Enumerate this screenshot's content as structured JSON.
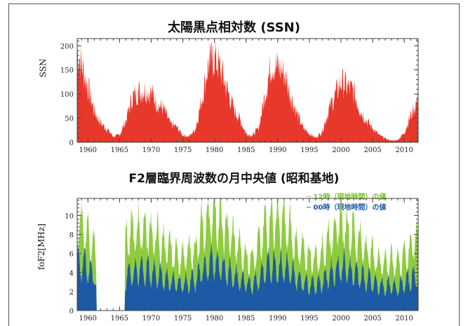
{
  "colors": {
    "ssn": "#e8372b",
    "noon": "#8ecb3f",
    "midnight": "#1d5aa6",
    "axis": "#444444"
  },
  "chart_data": [
    {
      "type": "area",
      "title": "太陽黒点相対数 (SSN)",
      "xlabel": "",
      "ylabel": "SSN",
      "xlim": [
        1958.3,
        2012.2
      ],
      "ylim": [
        0,
        215
      ],
      "xticks": [
        1960,
        1965,
        1970,
        1975,
        1980,
        1985,
        1990,
        1995,
        2000,
        2005,
        2010
      ],
      "xtick_labels": [
        "1960",
        "1965",
        "1970",
        "1975",
        "1980",
        "1985",
        "1990",
        "1995",
        "2000",
        "2005",
        "2010"
      ],
      "yticks": [
        0,
        50,
        100,
        150,
        200
      ],
      "ytick_labels": [
        "0",
        "50",
        "100",
        "150",
        "200"
      ],
      "series": [
        {
          "x": [
            1958.5,
            1959,
            1960,
            1961,
            1962,
            1963,
            1964,
            1965,
            1966,
            1967,
            1968,
            1969,
            1970,
            1971,
            1972,
            1973,
            1974,
            1975,
            1976,
            1977,
            1978,
            1979,
            1980,
            1981,
            1982,
            1983,
            1984,
            1985,
            1986,
            1987,
            1988,
            1989,
            1990,
            1991,
            1992,
            1993,
            1994,
            1995,
            1996,
            1997,
            1998,
            1999,
            2000,
            2001,
            2002,
            2003,
            2004,
            2005,
            2006,
            2007,
            2008,
            2009,
            2010,
            2011,
            2012
          ],
          "values": [
            185,
            160,
            115,
            65,
            40,
            28,
            12,
            15,
            45,
            93,
            105,
            108,
            103,
            80,
            68,
            38,
            32,
            15,
            12,
            28,
            90,
            160,
            175,
            150,
            110,
            70,
            48,
            18,
            14,
            30,
            100,
            165,
            155,
            145,
            100,
            60,
            30,
            18,
            9,
            22,
            65,
            95,
            125,
            115,
            105,
            68,
            45,
            30,
            15,
            8,
            3,
            5,
            20,
            55,
            85
          ]
        }
      ]
    },
    {
      "type": "area",
      "title": "F2層臨界周波数の月中央値 (昭和基地)",
      "xlabel": "",
      "ylabel": "foF2[MHz]",
      "xlim": [
        1958.3,
        2012.2
      ],
      "ylim": [
        0,
        11.8
      ],
      "xticks": [
        1960,
        1965,
        1970,
        1975,
        1980,
        1985,
        1990,
        1995,
        2000,
        2005,
        2010
      ],
      "xtick_labels": [
        "1960",
        "1965",
        "1970",
        "1975",
        "1980",
        "1985",
        "1990",
        "1995",
        "2000",
        "2005",
        "2010"
      ],
      "yticks": [
        0,
        2,
        4,
        6,
        8,
        10
      ],
      "ytick_labels": [
        "0",
        "2",
        "4",
        "6",
        "8",
        "10"
      ],
      "gap": [
        1961.3,
        1965.8
      ],
      "legend": [
        "─ 12時（現地時間）の値",
        "─ 00時（現地時間）の値"
      ],
      "series": [
        {
          "name": "12時（現地時間）の値",
          "x": [
            1958.5,
            1959,
            1960,
            1961,
            1962,
            1963,
            1964,
            1965,
            1966,
            1967,
            1968,
            1969,
            1970,
            1971,
            1972,
            1973,
            1974,
            1975,
            1976,
            1977,
            1978,
            1979,
            1980,
            1981,
            1982,
            1983,
            1984,
            1985,
            1986,
            1987,
            1988,
            1989,
            1990,
            1991,
            1992,
            1993,
            1994,
            1995,
            1996,
            1997,
            1998,
            1999,
            2000,
            2001,
            2002,
            2003,
            2004,
            2005,
            2006,
            2007,
            2008,
            2009,
            2010,
            2011,
            2012
          ],
          "values": [
            9.0,
            8.6,
            7.8,
            6.5,
            0,
            0,
            0,
            0,
            7.6,
            8.0,
            8.3,
            8.5,
            8.0,
            7.4,
            6.8,
            6.2,
            5.7,
            5.6,
            5.8,
            6.3,
            8.2,
            9.6,
            10.2,
            9.0,
            8.3,
            7.3,
            6.4,
            5.5,
            5.6,
            6.6,
            8.6,
            9.6,
            9.3,
            9.0,
            8.0,
            6.7,
            6.0,
            5.6,
            5.4,
            6.0,
            7.4,
            8.4,
            9.2,
            8.6,
            8.0,
            7.2,
            6.4,
            5.8,
            5.2,
            5.0,
            5.0,
            5.1,
            5.5,
            6.7,
            7.4
          ]
        },
        {
          "name": "00時（現地時間）の値",
          "x": [
            1958.5,
            1959,
            1960,
            1961,
            1962,
            1963,
            1964,
            1965,
            1966,
            1967,
            1968,
            1969,
            1970,
            1971,
            1972,
            1973,
            1974,
            1975,
            1976,
            1977,
            1978,
            1979,
            1980,
            1981,
            1982,
            1983,
            1984,
            1985,
            1986,
            1987,
            1988,
            1989,
            1990,
            1991,
            1992,
            1993,
            1994,
            1995,
            1996,
            1997,
            1998,
            1999,
            2000,
            2001,
            2002,
            2003,
            2004,
            2005,
            2006,
            2007,
            2008,
            2009,
            2010,
            2011,
            2012
          ],
          "values": [
            5.0,
            4.8,
            4.5,
            3.8,
            0,
            0,
            0,
            0,
            3.6,
            3.8,
            4.1,
            4.2,
            4.0,
            3.7,
            3.4,
            3.1,
            2.9,
            2.8,
            2.9,
            3.1,
            4.2,
            4.8,
            5.0,
            4.6,
            4.2,
            3.6,
            3.2,
            2.8,
            2.8,
            3.3,
            4.3,
            4.8,
            4.6,
            4.5,
            4.0,
            3.4,
            3.0,
            2.8,
            2.7,
            3.0,
            3.7,
            4.2,
            4.6,
            4.3,
            4.0,
            3.6,
            3.2,
            2.9,
            2.6,
            2.5,
            2.5,
            2.5,
            2.8,
            3.3,
            3.7
          ]
        }
      ]
    }
  ]
}
